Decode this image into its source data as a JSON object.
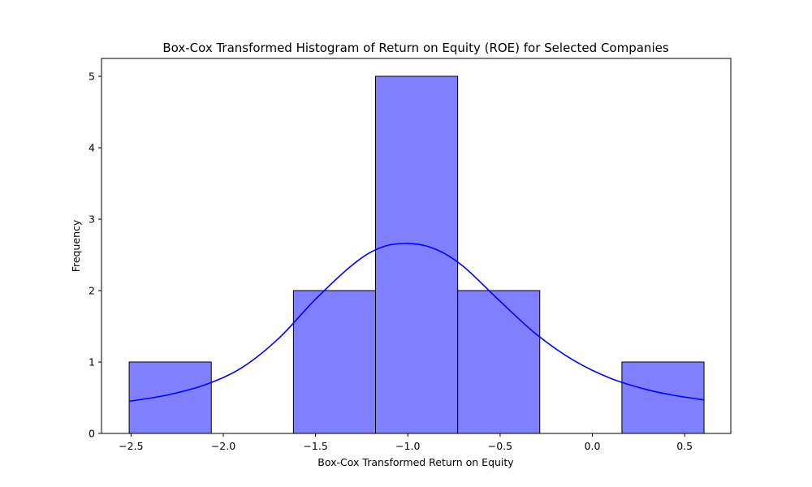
{
  "chart_data": {
    "type": "bar",
    "title": "Box-Cox Transformed Histogram of Return on Equity (ROE) for Selected Companies",
    "xlabel": "Box-Cox Transformed Return on Equity",
    "ylabel": "Frequency",
    "xlim": [
      -2.66,
      0.75
    ],
    "ylim": [
      0,
      5.25
    ],
    "x_ticks": [
      -2.5,
      -2.0,
      -1.5,
      -1.0,
      -0.5,
      0.0,
      0.5
    ],
    "x_tick_labels": [
      "−2.5",
      "−2.0",
      "−1.5",
      "−1.0",
      "−0.5",
      "0.0",
      "0.5"
    ],
    "y_ticks": [
      0,
      1,
      2,
      3,
      4,
      5
    ],
    "y_tick_labels": [
      "0",
      "1",
      "2",
      "3",
      "4",
      "5"
    ],
    "bin_edges": [
      -2.51,
      -2.065,
      -1.62,
      -1.175,
      -0.73,
      -0.285,
      0.16,
      0.605
    ],
    "counts": [
      1,
      0,
      2,
      5,
      2,
      0,
      1
    ],
    "bar_color": "#8080ff",
    "bar_edge_color": "#000000",
    "kde": {
      "color": "#0000ff",
      "x": [
        -2.51,
        -2.3,
        -2.1,
        -1.9,
        -1.7,
        -1.5,
        -1.3,
        -1.15,
        -1.0,
        -0.85,
        -0.7,
        -0.5,
        -0.3,
        -0.1,
        0.1,
        0.3,
        0.45,
        0.605
      ],
      "y": [
        0.45,
        0.54,
        0.68,
        0.92,
        1.33,
        1.88,
        2.36,
        2.6,
        2.66,
        2.58,
        2.34,
        1.85,
        1.38,
        1.02,
        0.77,
        0.61,
        0.53,
        0.47
      ]
    },
    "grid": false,
    "legend": "none"
  }
}
